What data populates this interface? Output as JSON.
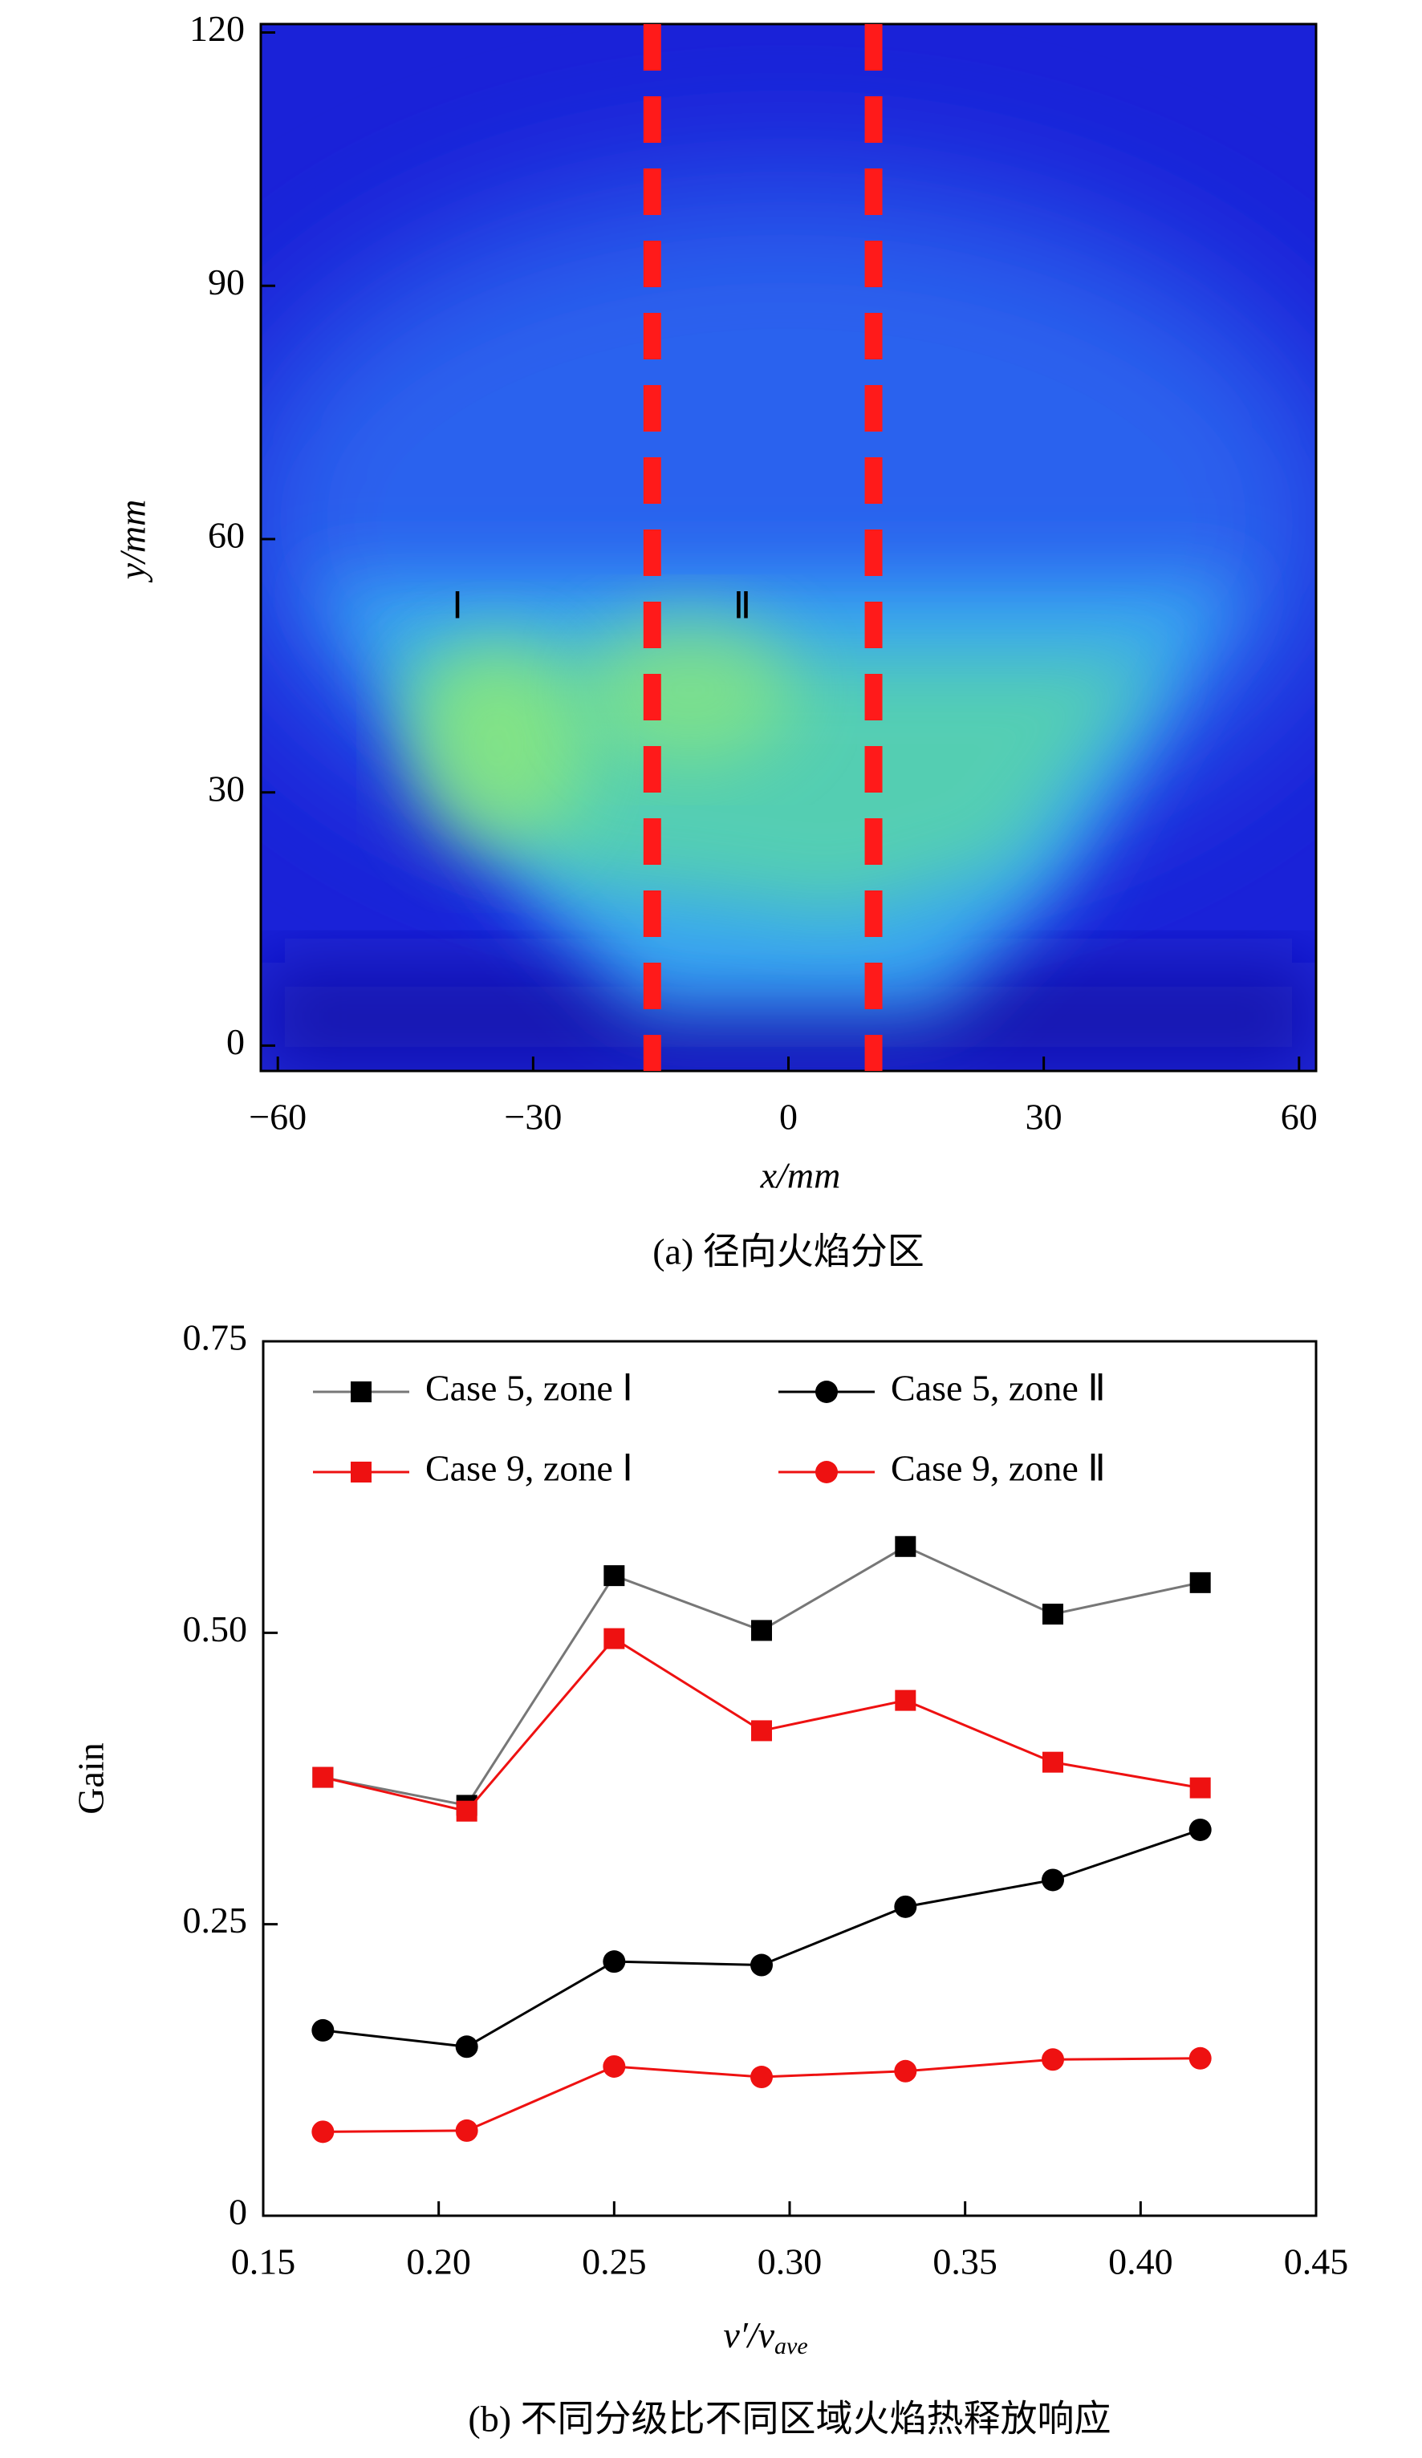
{
  "chart_data": [
    {
      "type": "image",
      "xlabel": "x/mm",
      "ylabel": "y/mm",
      "caption": "(a) 径向火焰分区",
      "xlim": [
        -62,
        62
      ],
      "ylim": [
        -3,
        121
      ],
      "xticks": [
        {
          "value": -60,
          "label": "−60"
        },
        {
          "value": -30,
          "label": "−30"
        },
        0,
        30,
        60
      ],
      "yticks": [
        0,
        30,
        60,
        90,
        120
      ],
      "zone_boundaries": [
        -16,
        10
      ],
      "boundary_color": "#ff1a1a",
      "annotations": [
        "Ⅰ",
        "Ⅱ"
      ]
    },
    {
      "type": "line",
      "xlabel": "v′/v",
      "xlabel_sub": "ave",
      "ylabel": "Gain",
      "caption": "(b) 不同分级比不同区域火焰热释放响应",
      "xlim": [
        0.15,
        0.45
      ],
      "ylim": [
        0,
        0.75
      ],
      "xticks": [
        0.15,
        0.2,
        0.25,
        0.3,
        0.35,
        0.4,
        0.45
      ],
      "xtick_labels": [
        "0.15",
        "0.20",
        "0.25",
        "0.30",
        "0.35",
        "0.40",
        "0.45"
      ],
      "yticks": [
        0,
        {
          "value": 0.25,
          "label": "0.25"
        },
        {
          "value": 0.5,
          "label": "0.50"
        },
        0.75
      ],
      "x": [
        0.167,
        0.208,
        0.25,
        0.292,
        0.333,
        0.375,
        0.417
      ],
      "series": [
        {
          "name": "Case 5, zone Ⅰ",
          "color": "#000000",
          "line_color": "#777777",
          "marker": "square",
          "values": [
            0.376,
            0.352,
            0.549,
            0.502,
            0.574,
            0.516,
            0.543
          ]
        },
        {
          "name": "Case 5, zone Ⅱ",
          "color": "#000000",
          "line_color": "#000000",
          "marker": "circle",
          "values": [
            0.159,
            0.145,
            0.218,
            0.215,
            0.265,
            0.288,
            0.331
          ]
        },
        {
          "name": "Case 9, zone Ⅰ",
          "color": "#ee1111",
          "line_color": "#ee1111",
          "marker": "square",
          "values": [
            0.376,
            0.347,
            0.495,
            0.416,
            0.442,
            0.389,
            0.367
          ]
        },
        {
          "name": "Case 9, zone Ⅱ",
          "color": "#ee1111",
          "line_color": "#ee1111",
          "marker": "circle",
          "values": [
            0.072,
            0.073,
            0.128,
            0.119,
            0.124,
            0.134,
            0.135
          ]
        }
      ]
    }
  ]
}
